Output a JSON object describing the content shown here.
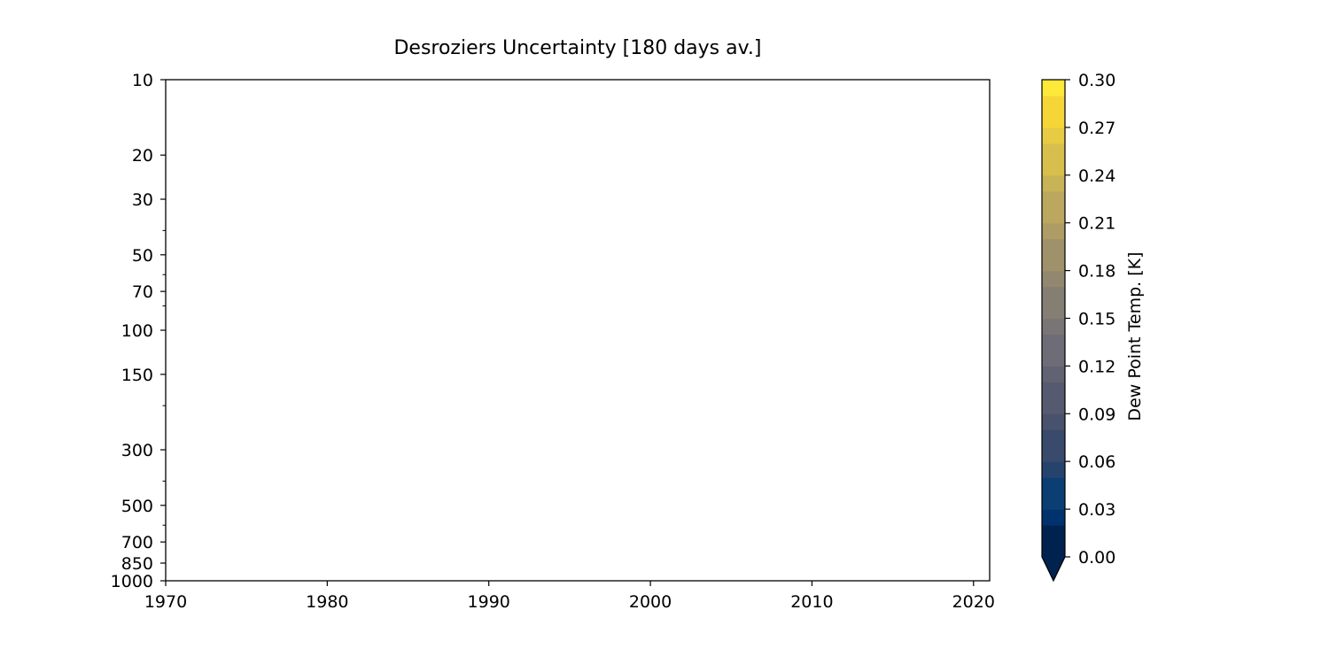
{
  "chart_data": {
    "type": "heatmap",
    "title": "Desroziers Uncertainty [180 days av.]",
    "xlabel": "",
    "ylabel": "",
    "x_ticks": [
      1970,
      1980,
      1990,
      2000,
      2010,
      2020
    ],
    "xlim": [
      1970,
      2021
    ],
    "y_scale": "log",
    "y_inverted": true,
    "y_ticks": [
      10,
      20,
      30,
      50,
      70,
      100,
      150,
      300,
      500,
      700,
      850,
      1000
    ],
    "y_minor_ticks": [
      40,
      60,
      80,
      200,
      400,
      600
    ],
    "ylim": [
      1000,
      10
    ],
    "values": [],
    "grid": false,
    "colorbar": {
      "label": "Dew Point Temp. [K]",
      "colormap": "cividis",
      "range": [
        0.0,
        0.3
      ],
      "levels": 30,
      "extend": "min",
      "ticks": [
        "0.00",
        "0.03",
        "0.06",
        "0.09",
        "0.12",
        "0.15",
        "0.18",
        "0.21",
        "0.24",
        "0.27",
        "0.30"
      ],
      "under_color": "#00224e",
      "colors": [
        "#00224e",
        "#00326e",
        "#0b3e73",
        "#26436d",
        "#394a6c",
        "#48526d",
        "#555a6f",
        "#616373",
        "#6d6c77",
        "#797576",
        "#857e73",
        "#928870",
        "#9f926b",
        "#ad9d65",
        "#bba85e",
        "#c9b357",
        "#d8bf4d",
        "#e7cb43",
        "#f6d637",
        "#fee838"
      ]
    }
  }
}
